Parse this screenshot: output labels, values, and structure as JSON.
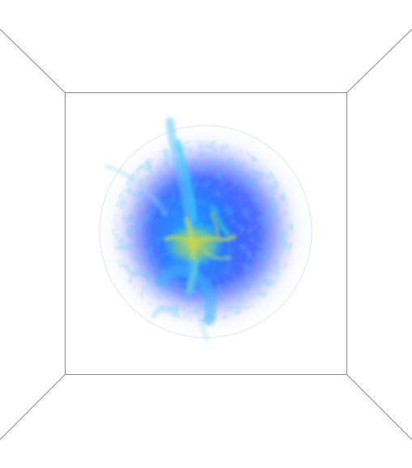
{
  "scene": {
    "kind": "3d volume rendering",
    "background_color": "#ffffff",
    "frame_color": "#8a8a8a",
    "volume": {
      "colormap": [
        "#ffffff",
        "#3355ff",
        "#1aa9ff",
        "#33e0d0",
        "#c8d84a"
      ],
      "halo_color": "#6a7dff",
      "shape": "sphere"
    }
  },
  "icons": {
    "frame": "perspective-box-frame",
    "volume": "density-cloud"
  }
}
